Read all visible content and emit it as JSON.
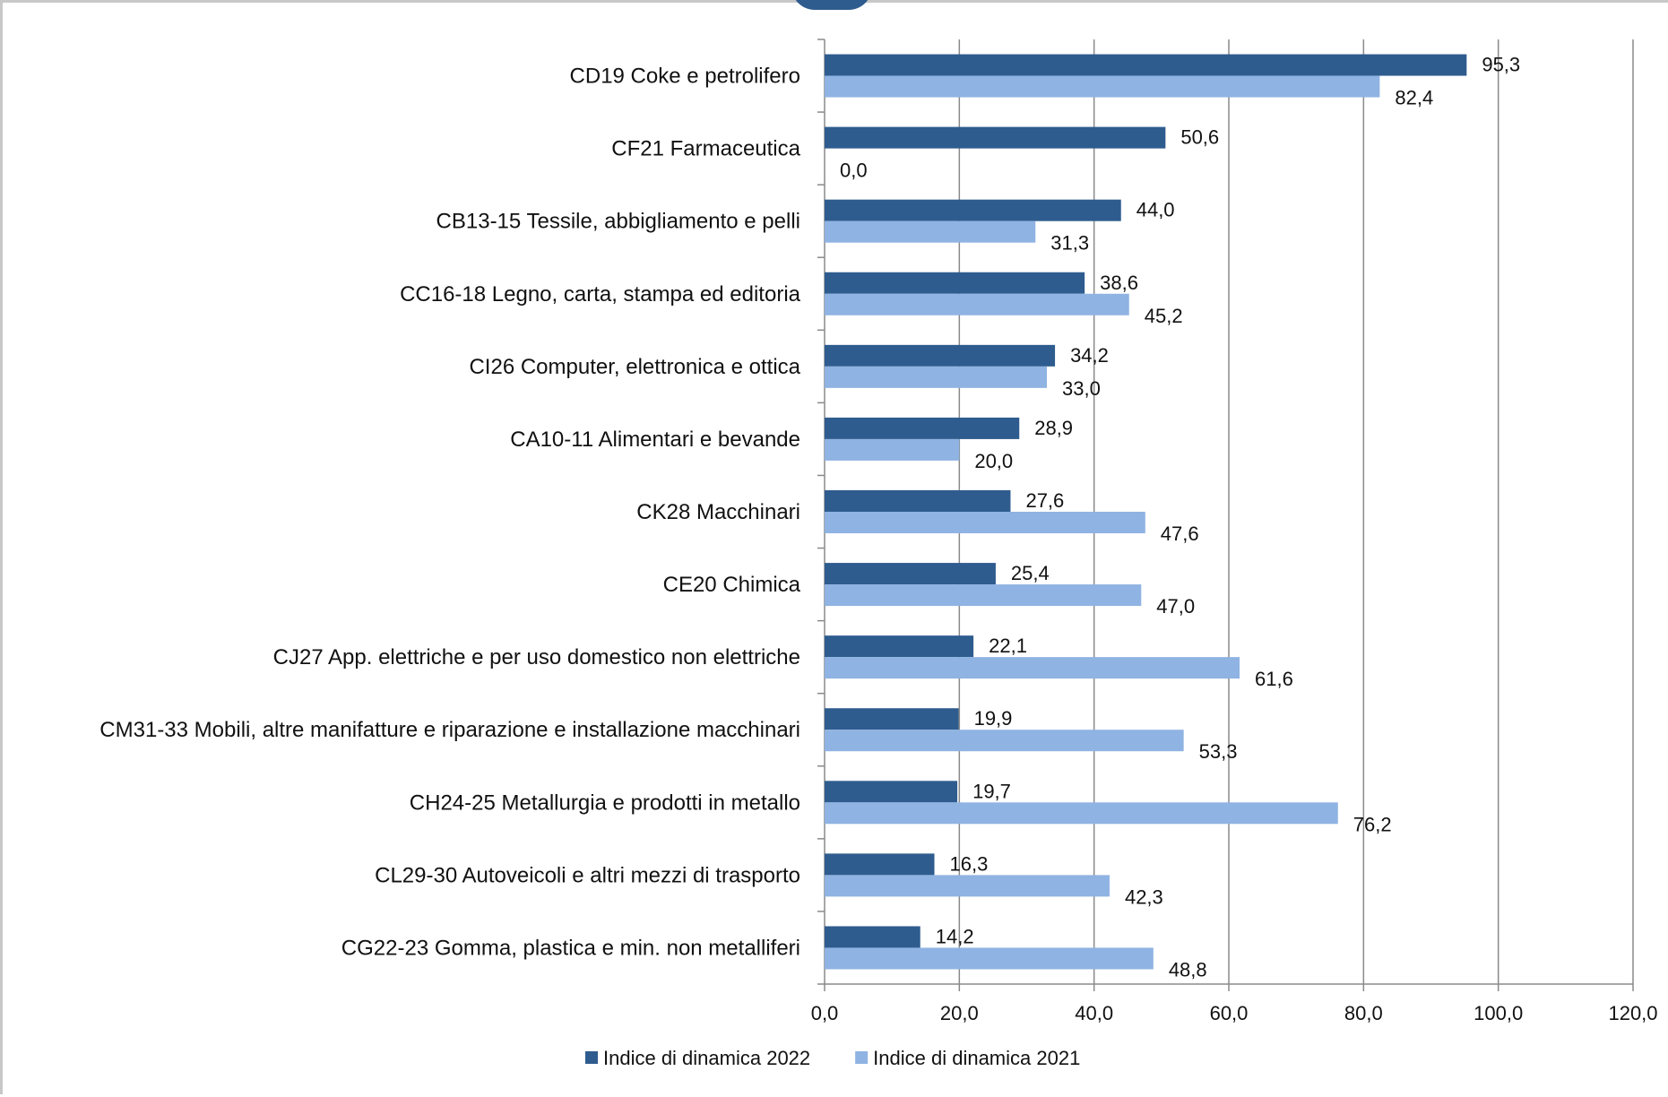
{
  "chart_data": {
    "type": "bar",
    "orientation": "horizontal",
    "categories": [
      "CD19   Coke e petrolifero",
      "CF21   Farmaceutica",
      "CB13-15   Tessile, abbigliamento e pelli",
      "CC16-18  Legno, carta, stampa ed editoria",
      "CI26   Computer, elettronica e ottica",
      "CA10-11   Alimentari e bevande",
      "CK28   Macchinari",
      "CE20   Chimica",
      "CJ27   App. elettriche e per uso domestico non elettriche",
      "CM31-33    Mobili, altre manifatture e riparazione e installazione macchinari",
      "CH24-25   Metallurgia e prodotti in metallo",
      "CL29-30   Autoveicoli e altri mezzi di trasporto",
      "CG22-23   Gomma, plastica e min. non metalliferi"
    ],
    "series": [
      {
        "name": "Indice di dinamica 2022",
        "color": "#2f5c8f",
        "values": [
          95.3,
          50.6,
          44.0,
          38.6,
          34.2,
          28.9,
          27.6,
          25.4,
          22.1,
          19.9,
          19.7,
          16.3,
          14.2
        ],
        "labels": [
          "95,3",
          "50,6",
          "44,0",
          "38,6",
          "34,2",
          "28,9",
          "27,6",
          "25,4",
          "22,1",
          "19,9",
          "19,7",
          "16,3",
          "14,2"
        ]
      },
      {
        "name": "Indice di dinamica 2021",
        "color": "#8fb3e2",
        "values": [
          82.4,
          0.0,
          31.3,
          45.2,
          33.0,
          20.0,
          47.6,
          47.0,
          61.6,
          53.3,
          76.2,
          42.3,
          48.8
        ],
        "labels": [
          "82,4",
          "0,0",
          "31,3",
          "45,2",
          "33,0",
          "20,0",
          "47,6",
          "47,0",
          "61,6",
          "53,3",
          "76,2",
          "42,3",
          "48,8"
        ]
      }
    ],
    "xlim": [
      0,
      120
    ],
    "xticks": [
      "0,0",
      "20,0",
      "40,0",
      "60,0",
      "80,0",
      "100,0",
      "120,0"
    ],
    "grid": true,
    "legend_position": "bottom"
  }
}
